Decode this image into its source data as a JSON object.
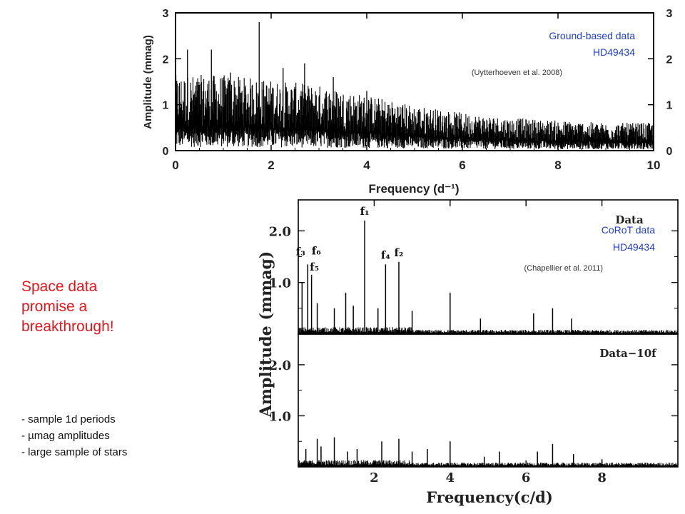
{
  "slide": {
    "headline_lines": [
      "Space data",
      "promise a",
      "breakthrough!"
    ],
    "bullets": [
      "- sample 1d periods",
      "- µmag amplitudes",
      "- large sample of stars"
    ]
  },
  "colors": {
    "headline": "#e8141c",
    "annotation": "#1f3fc8",
    "trace": "#000000"
  },
  "chart_data": [
    {
      "type": "line",
      "panel": "ground-based periodogram",
      "title": "",
      "xlabel": "Frequency (d⁻¹)",
      "ylabel": "Amplitude (mmag)",
      "xlim": [
        0,
        10
      ],
      "ylim": [
        0,
        3
      ],
      "xticks": [
        "0",
        "2",
        "4",
        "6",
        "8",
        "10"
      ],
      "yticks": [
        "0",
        "1",
        "2",
        "3"
      ],
      "annotations": [
        "Ground-based data",
        "HD49434"
      ],
      "citation": "(Uytterhoeven et al. 2008)",
      "peaks": [
        {
          "x": 0.25,
          "y": 2.2
        },
        {
          "x": 0.75,
          "y": 2.2
        },
        {
          "x": 1.15,
          "y": 1.7
        },
        {
          "x": 1.75,
          "y": 2.8
        },
        {
          "x": 2.25,
          "y": 1.8
        },
        {
          "x": 2.7,
          "y": 1.9
        },
        {
          "x": 3.3,
          "y": 1.6
        },
        {
          "x": 4.0,
          "y": 1.3
        }
      ],
      "noise_envelope": [
        [
          0,
          1.5
        ],
        [
          1,
          1.5
        ],
        [
          2,
          1.4
        ],
        [
          3,
          1.3
        ],
        [
          4,
          1.1
        ],
        [
          5,
          0.9
        ],
        [
          6,
          0.75
        ],
        [
          7,
          0.65
        ],
        [
          8,
          0.6
        ],
        [
          9,
          0.55
        ],
        [
          10,
          0.55
        ]
      ]
    },
    {
      "type": "line",
      "panel": "CoRoT periodogram (Data)",
      "title": "Data",
      "xlabel": "Frequency(c/d)",
      "ylabel": "Amplitude (mmag)",
      "xlim": [
        0,
        10
      ],
      "ylim": [
        0,
        2.6
      ],
      "yticks": [
        "1.0",
        "2.0"
      ],
      "annotations": [
        "CoRoT data",
        "HD49434"
      ],
      "citation": "(Chapellier et al. 2011)",
      "peak_labels": [
        "f₁",
        "f₂",
        "f₃",
        "f₄",
        "f₅",
        "f₆"
      ],
      "peaks": [
        {
          "x": 0.1,
          "y": 1.0,
          "label": "f₃"
        },
        {
          "x": 0.25,
          "y": 1.35,
          "label": "f₆"
        },
        {
          "x": 0.35,
          "y": 1.15,
          "label": "f₅"
        },
        {
          "x": 1.75,
          "y": 2.2,
          "label": "f₁"
        },
        {
          "x": 2.3,
          "y": 1.35,
          "label": "f₄"
        },
        {
          "x": 2.65,
          "y": 1.4,
          "label": "f₂"
        },
        {
          "x": 0.5,
          "y": 0.6
        },
        {
          "x": 0.95,
          "y": 0.5
        },
        {
          "x": 1.25,
          "y": 0.8
        },
        {
          "x": 1.45,
          "y": 0.55
        },
        {
          "x": 2.1,
          "y": 0.5
        },
        {
          "x": 3.0,
          "y": 0.45
        },
        {
          "x": 4.0,
          "y": 0.8
        },
        {
          "x": 4.8,
          "y": 0.3
        },
        {
          "x": 6.2,
          "y": 0.4
        },
        {
          "x": 6.7,
          "y": 0.5
        },
        {
          "x": 7.2,
          "y": 0.3
        }
      ]
    },
    {
      "type": "line",
      "panel": "CoRoT residual periodogram (Data-10f)",
      "title": "Data−10f",
      "xlabel": "Frequency(c/d)",
      "ylabel": "Amplitude (mmag)",
      "xlim": [
        0,
        10
      ],
      "ylim": [
        0,
        2.6
      ],
      "xticks": [
        "2",
        "4",
        "6",
        "8"
      ],
      "yticks": [
        "1.0",
        "2.0"
      ],
      "peaks": [
        {
          "x": 0.2,
          "y": 0.35
        },
        {
          "x": 0.5,
          "y": 0.55
        },
        {
          "x": 0.6,
          "y": 0.4
        },
        {
          "x": 0.95,
          "y": 0.58
        },
        {
          "x": 1.3,
          "y": 0.3
        },
        {
          "x": 1.55,
          "y": 0.35
        },
        {
          "x": 2.2,
          "y": 0.5
        },
        {
          "x": 2.65,
          "y": 0.55
        },
        {
          "x": 3.0,
          "y": 0.3
        },
        {
          "x": 3.4,
          "y": 0.35
        },
        {
          "x": 4.0,
          "y": 0.5
        },
        {
          "x": 4.9,
          "y": 0.2
        },
        {
          "x": 5.3,
          "y": 0.3
        },
        {
          "x": 6.3,
          "y": 0.3
        },
        {
          "x": 6.7,
          "y": 0.45
        },
        {
          "x": 7.25,
          "y": 0.25
        },
        {
          "x": 8.0,
          "y": 0.15
        }
      ]
    }
  ]
}
